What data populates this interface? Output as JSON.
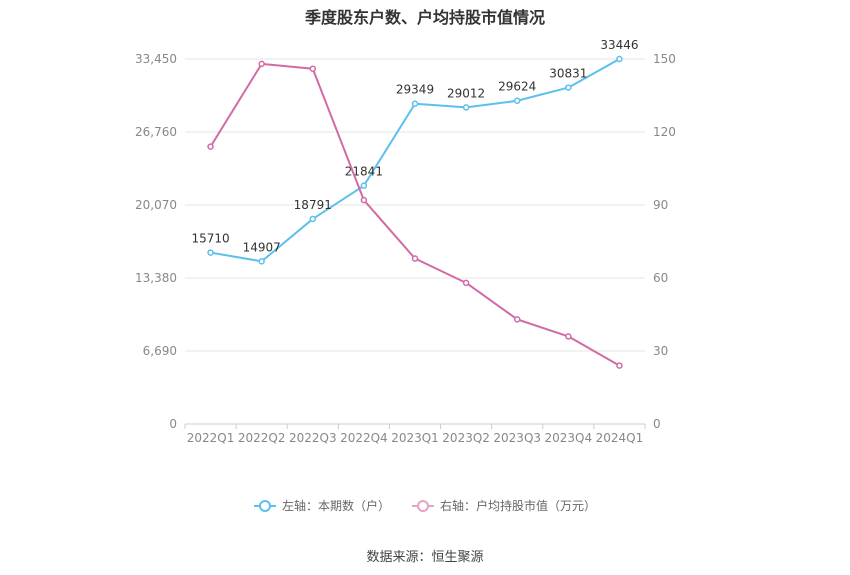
{
  "chart_data": {
    "type": "line",
    "title": "季度股东户数、户均持股市值情况",
    "categories": [
      "2022Q1",
      "2022Q2",
      "2022Q3",
      "2022Q4",
      "2023Q1",
      "2023Q2",
      "2023Q3",
      "2023Q4",
      "2024Q1"
    ],
    "left_axis": {
      "ticks": [
        "0",
        "6,690",
        "13,380",
        "20,070",
        "26,760",
        "33,450"
      ],
      "ylim": [
        0,
        33450
      ]
    },
    "right_axis": {
      "ticks": [
        "0",
        "30",
        "60",
        "90",
        "120",
        "150"
      ],
      "ylim": [
        0,
        150
      ]
    },
    "grid": true,
    "legend_position": "bottom",
    "series": [
      {
        "name": "左轴：本期数（户）",
        "axis": "left",
        "color": "#5bc0eb",
        "values": [
          15710,
          14907,
          18791,
          21841,
          29349,
          29012,
          29624,
          30831,
          33446
        ],
        "labels": [
          "15710",
          "14907",
          "18791",
          "21841",
          "29349",
          "29012",
          "29624",
          "30831",
          "33446"
        ]
      },
      {
        "name": "右轴：户均持股市值（万元）",
        "axis": "right",
        "color": "#d16ba5",
        "values": [
          114,
          148,
          146,
          92,
          68,
          58,
          43,
          36,
          24
        ]
      }
    ]
  },
  "source_text": "数据来源：恒生聚源"
}
